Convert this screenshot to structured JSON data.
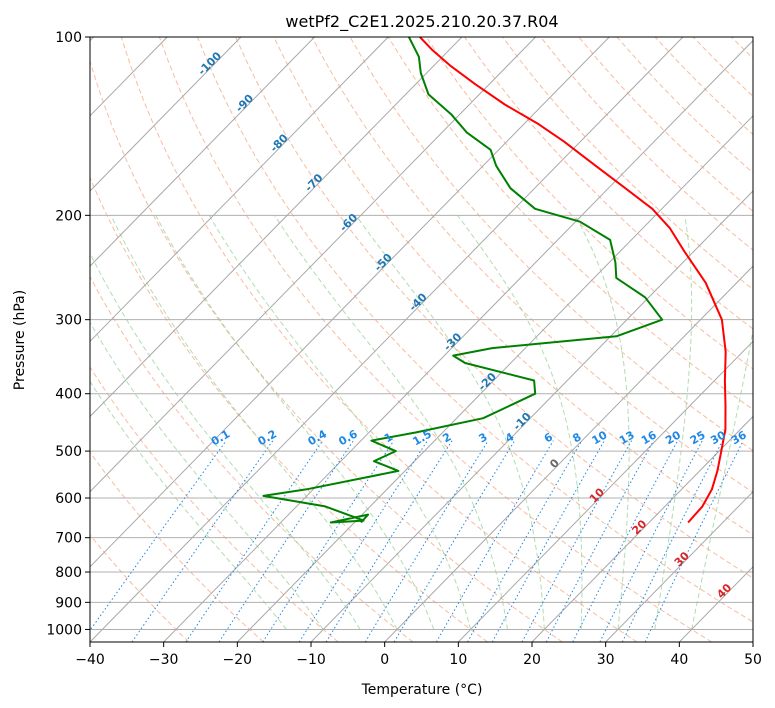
{
  "chart_data": {
    "type": "line",
    "chart_kind": "skew-T log-P diagram",
    "title": "wetPf2_C2E1.2025.210.20.37.R04",
    "xlabel": "Temperature (°C)",
    "ylabel": "Pressure (hPa)",
    "xlim": [
      -40,
      50
    ],
    "ylim_pressure_hPa": [
      1050,
      100
    ],
    "y_scale": "log",
    "grid": true,
    "x_ticks": [
      -40,
      -30,
      -20,
      -10,
      0,
      10,
      20,
      30,
      40,
      50
    ],
    "y_ticks": [
      100,
      200,
      300,
      400,
      500,
      600,
      700,
      800,
      900,
      1000
    ],
    "isotherm_labels": [
      -100,
      -90,
      -80,
      -70,
      -60,
      -50,
      -40,
      -30,
      -20,
      -10,
      0,
      10,
      20,
      30,
      40
    ],
    "mixing_ratio_labels": [
      "0.1",
      "0.2",
      "0.4",
      "0.6",
      "1",
      "1.5",
      "2",
      "3",
      "4",
      "6",
      "8",
      "10",
      "13",
      "16",
      "20",
      "25",
      "30",
      "36"
    ],
    "series": [
      {
        "role": "temperature",
        "color": "#ff0000",
        "points": [
          {
            "p": 660,
            "t": 25.3
          },
          {
            "p": 620,
            "t": 25.1
          },
          {
            "p": 580,
            "t": 24.1
          },
          {
            "p": 540,
            "t": 22.4
          },
          {
            "p": 500,
            "t": 20.3
          },
          {
            "p": 460,
            "t": 18.0
          },
          {
            "p": 420,
            "t": 14.9
          },
          {
            "p": 380,
            "t": 11.4
          },
          {
            "p": 340,
            "t": 7.7
          },
          {
            "p": 300,
            "t": 2.9
          },
          {
            "p": 260,
            "t": -4.2
          },
          {
            "p": 230,
            "t": -11.3
          },
          {
            "p": 210,
            "t": -16.4
          },
          {
            "p": 195,
            "t": -21.3
          },
          {
            "p": 180,
            "t": -27.7
          },
          {
            "p": 165,
            "t": -34.7
          },
          {
            "p": 150,
            "t": -42.3
          },
          {
            "p": 140,
            "t": -48.2
          },
          {
            "p": 130,
            "t": -55.2
          },
          {
            "p": 120,
            "t": -62.0
          },
          {
            "p": 112,
            "t": -67.6
          },
          {
            "p": 105,
            "t": -72.4
          },
          {
            "p": 100,
            "t": -75.7
          }
        ]
      },
      {
        "role": "dewpoint",
        "color": "#008000",
        "points": [
          {
            "p": 660,
            "t": -19.1
          },
          {
            "p": 640,
            "t": -19.2
          },
          {
            "p": 660,
            "t": -23.2
          },
          {
            "p": 655,
            "t": -19.0
          },
          {
            "p": 620,
            "t": -26.1
          },
          {
            "p": 595,
            "t": -35.9
          },
          {
            "p": 580,
            "t": -30.9
          },
          {
            "p": 540,
            "t": -20.9
          },
          {
            "p": 520,
            "t": -25.5
          },
          {
            "p": 500,
            "t": -23.9
          },
          {
            "p": 480,
            "t": -28.6
          },
          {
            "p": 465,
            "t": -23.6
          },
          {
            "p": 440,
            "t": -16.4
          },
          {
            "p": 400,
            "t": -12.6
          },
          {
            "p": 380,
            "t": -14.5
          },
          {
            "p": 355,
            "t": -26.2
          },
          {
            "p": 345,
            "t": -28.8
          },
          {
            "p": 335,
            "t": -24.5
          },
          {
            "p": 320,
            "t": -9.2
          },
          {
            "p": 300,
            "t": -5.2
          },
          {
            "p": 275,
            "t": -10.5
          },
          {
            "p": 255,
            "t": -17.0
          },
          {
            "p": 240,
            "t": -19.2
          },
          {
            "p": 220,
            "t": -22.9
          },
          {
            "p": 205,
            "t": -29.4
          },
          {
            "p": 195,
            "t": -37.2
          },
          {
            "p": 180,
            "t": -43.3
          },
          {
            "p": 165,
            "t": -48.2
          },
          {
            "p": 155,
            "t": -51.1
          },
          {
            "p": 145,
            "t": -56.6
          },
          {
            "p": 135,
            "t": -61.2
          },
          {
            "p": 125,
            "t": -66.9
          },
          {
            "p": 115,
            "t": -70.8
          },
          {
            "p": 108,
            "t": -73.2
          },
          {
            "p": 100,
            "t": -77.2
          }
        ]
      }
    ]
  }
}
